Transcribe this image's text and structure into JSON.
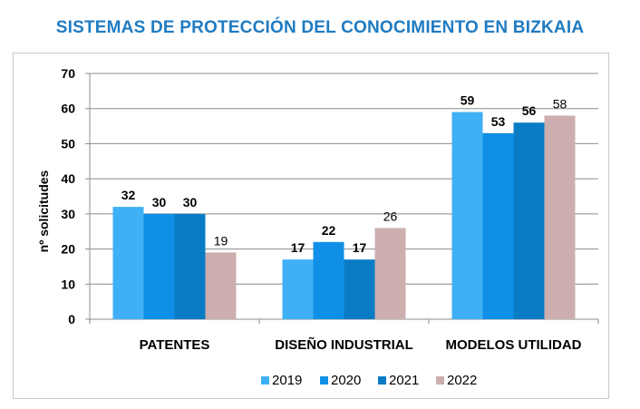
{
  "chart_data": {
    "type": "bar",
    "title": "SISTEMAS DE PROTECCIÓN DEL CONOCIMIENTO EN BIZKAIA",
    "xlabel": "",
    "ylabel": "nº solicitudes",
    "ylim": [
      0,
      70
    ],
    "yticks": [
      0,
      10,
      20,
      30,
      40,
      50,
      60,
      70
    ],
    "grid": true,
    "legend_position": "bottom",
    "categories": [
      "PATENTES",
      "DISEÑO INDUSTRIAL",
      "MODELOS UTILIDAD"
    ],
    "series": [
      {
        "name": "2019",
        "values": [
          32,
          17,
          59
        ],
        "color": "#3fb0f6"
      },
      {
        "name": "2020",
        "values": [
          30,
          22,
          53
        ],
        "color": "#0f90e6"
      },
      {
        "name": "2021",
        "values": [
          30,
          17,
          56
        ],
        "color": "#0a7cc6"
      },
      {
        "name": "2022",
        "values": [
          19,
          26,
          58
        ],
        "color": "#cdaeae"
      }
    ]
  }
}
